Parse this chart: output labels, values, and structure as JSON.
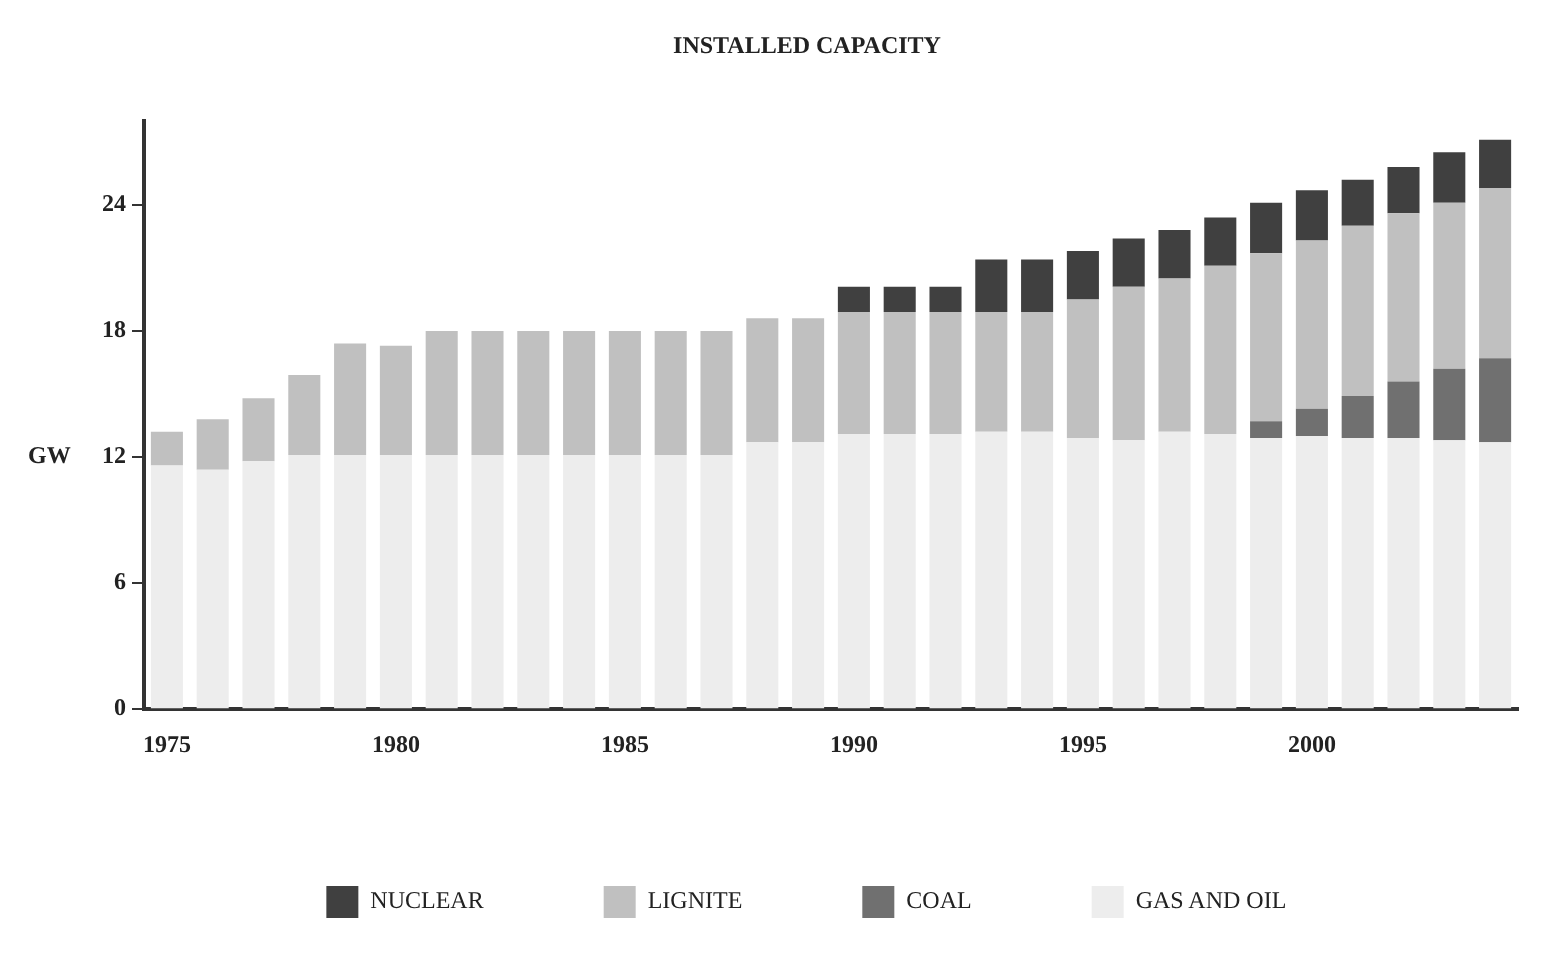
{
  "chart_data": {
    "type": "bar",
    "title": "INSTALLED CAPACITY",
    "ylabel": "GW",
    "stacked": true,
    "grid": false,
    "legend": "bottom",
    "categories": [
      "1975",
      null,
      null,
      null,
      null,
      "1980",
      null,
      null,
      null,
      null,
      "1985",
      null,
      null,
      null,
      null,
      "1990",
      null,
      null,
      null,
      null,
      "1995",
      null,
      null,
      null,
      null,
      "2000",
      null,
      null,
      null,
      null
    ],
    "ylim": [
      0,
      28
    ],
    "yticks": [
      0,
      6,
      12,
      18,
      24
    ],
    "series": [
      {
        "name": "GAS AND OIL",
        "color": "#ededed",
        "values": [
          11.6,
          11.4,
          11.8,
          12.1,
          12.1,
          12.1,
          12.1,
          12.1,
          12.1,
          12.1,
          12.1,
          12.1,
          12.1,
          12.7,
          12.7,
          13.1,
          13.1,
          13.1,
          13.2,
          13.2,
          12.9,
          12.8,
          13.2,
          13.1,
          12.9,
          13.0,
          12.9,
          12.9,
          12.8,
          12.7
        ]
      },
      {
        "name": "COAL",
        "color": "#707070",
        "values": [
          null,
          null,
          null,
          null,
          null,
          null,
          null,
          null,
          null,
          null,
          null,
          null,
          null,
          null,
          null,
          null,
          null,
          null,
          null,
          null,
          null,
          null,
          null,
          null,
          0.8,
          1.3,
          2.0,
          2.7,
          3.4,
          4.0
        ]
      },
      {
        "name": "LIGNITE",
        "color": "#c0c0c0",
        "values": [
          1.6,
          2.4,
          3.0,
          3.8,
          5.3,
          5.2,
          5.9,
          5.9,
          5.9,
          5.9,
          5.9,
          5.9,
          5.9,
          5.9,
          5.9,
          5.8,
          5.8,
          5.8,
          5.7,
          5.7,
          6.6,
          7.3,
          7.3,
          8.0,
          8.0,
          8.0,
          8.1,
          8.0,
          7.9,
          8.1
        ]
      },
      {
        "name": "NUCLEAR",
        "color": "#404040",
        "values": [
          null,
          null,
          null,
          null,
          null,
          null,
          null,
          null,
          null,
          null,
          null,
          null,
          null,
          null,
          null,
          1.2,
          1.2,
          1.2,
          2.5,
          2.5,
          2.3,
          2.3,
          2.3,
          2.3,
          2.4,
          2.4,
          2.2,
          2.2,
          2.4,
          2.3
        ]
      }
    ]
  }
}
